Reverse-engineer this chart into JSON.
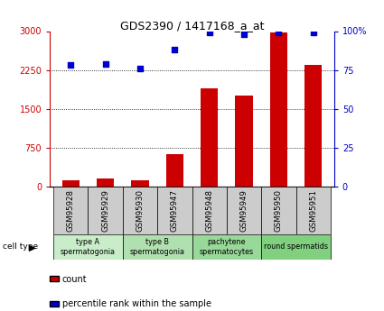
{
  "title": "GDS2390 / 1417168_a_at",
  "samples": [
    "GSM95928",
    "GSM95929",
    "GSM95930",
    "GSM95947",
    "GSM95948",
    "GSM95949",
    "GSM95950",
    "GSM95951"
  ],
  "counts": [
    130,
    160,
    120,
    620,
    1900,
    1750,
    2980,
    2350
  ],
  "percentile_ranks": [
    78,
    79,
    76,
    88,
    99,
    98,
    99,
    99
  ],
  "cell_type_groups": [
    {
      "label": "type A\nspermatogonia",
      "color": "#c8edc8",
      "start": 0,
      "end": 2
    },
    {
      "label": "type B\nspermatogonia",
      "color": "#b0e0b0",
      "start": 2,
      "end": 4
    },
    {
      "label": "pachytene\nspermatocytes",
      "color": "#98d898",
      "start": 4,
      "end": 6
    },
    {
      "label": "round spermatids",
      "color": "#80d080",
      "start": 6,
      "end": 8
    }
  ],
  "ylim_left": [
    0,
    3000
  ],
  "ylim_right": [
    0,
    100
  ],
  "yticks_left": [
    0,
    750,
    1500,
    2250,
    3000
  ],
  "ytick_labels_left": [
    "0",
    "750",
    "1500",
    "2250",
    "3000"
  ],
  "yticks_right": [
    0,
    25,
    50,
    75,
    100
  ],
  "ytick_labels_right": [
    "0",
    "25",
    "50",
    "75",
    "100%"
  ],
  "bar_color": "#cc0000",
  "dot_color": "#0000cc",
  "bar_width": 0.5,
  "plot_bg_color": "#ffffff",
  "grid_color": "#000000",
  "sample_bg_color": "#cccccc",
  "legend_color_count": "#cc0000",
  "legend_color_pct": "#0000cc"
}
